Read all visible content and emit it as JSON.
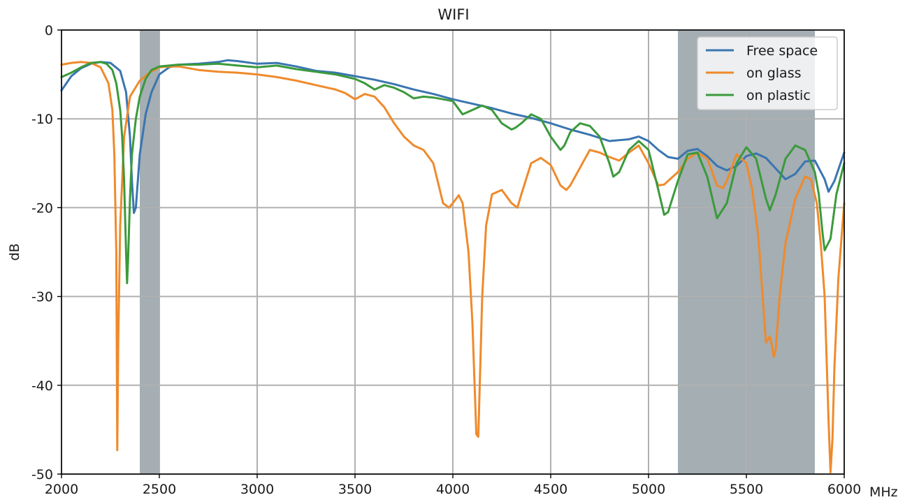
{
  "chart_data": {
    "type": "line",
    "title": "WIFI",
    "xlabel": "",
    "ylabel": "dB",
    "x_unit_label": "MHz",
    "xlim": [
      2000,
      6000
    ],
    "ylim": [
      -50,
      0
    ],
    "xticks": [
      2000,
      2500,
      3000,
      3500,
      4000,
      4500,
      5000,
      5500,
      6000
    ],
    "yticks": [
      0,
      -10,
      -20,
      -30,
      -40,
      -50
    ],
    "grid": true,
    "legend_position": "top-right",
    "shaded_bands": [
      {
        "from": 2400,
        "to": 2500,
        "color": "#a4aeb3"
      },
      {
        "from": 5150,
        "to": 5850,
        "color": "#a4aeb3"
      }
    ],
    "series": [
      {
        "name": "Free space",
        "color": "#3a75b0",
        "x": [
          2000,
          2050,
          2100,
          2150,
          2200,
          2250,
          2300,
          2330,
          2350,
          2360,
          2370,
          2380,
          2400,
          2430,
          2460,
          2500,
          2550,
          2600,
          2700,
          2800,
          2850,
          2900,
          3000,
          3100,
          3200,
          3300,
          3400,
          3500,
          3600,
          3700,
          3800,
          3900,
          4000,
          4100,
          4200,
          4300,
          4400,
          4500,
          4600,
          4700,
          4800,
          4900,
          4950,
          5000,
          5050,
          5100,
          5150,
          5200,
          5250,
          5300,
          5350,
          5400,
          5450,
          5500,
          5550,
          5600,
          5650,
          5700,
          5750,
          5800,
          5850,
          5900,
          5920,
          5950,
          6000
        ],
        "y": [
          -6.8,
          -5.2,
          -4.3,
          -3.8,
          -3.6,
          -3.7,
          -4.6,
          -7,
          -12,
          -17,
          -20.6,
          -20,
          -14,
          -9.5,
          -7,
          -5,
          -4.2,
          -3.9,
          -3.8,
          -3.6,
          -3.4,
          -3.5,
          -3.8,
          -3.7,
          -4.1,
          -4.6,
          -4.8,
          -5.2,
          -5.6,
          -6.1,
          -6.7,
          -7.2,
          -7.8,
          -8.3,
          -8.8,
          -9.4,
          -9.9,
          -10.5,
          -11.2,
          -11.8,
          -12.5,
          -12.3,
          -12.0,
          -12.5,
          -13.5,
          -14.3,
          -14.5,
          -13.6,
          -13.4,
          -14.2,
          -15.3,
          -15.8,
          -15.3,
          -14.2,
          -13.9,
          -14.4,
          -15.6,
          -16.8,
          -16.2,
          -14.8,
          -14.7,
          -16.8,
          -18.2,
          -17.0,
          -13.8
        ]
      },
      {
        "name": "on glass",
        "color": "#ef8a2c",
        "x": [
          2000,
          2050,
          2100,
          2150,
          2200,
          2240,
          2260,
          2270,
          2280,
          2285,
          2290,
          2300,
          2320,
          2350,
          2400,
          2450,
          2500,
          2550,
          2600,
          2700,
          2800,
          2900,
          3000,
          3100,
          3200,
          3300,
          3400,
          3450,
          3500,
          3550,
          3600,
          3650,
          3700,
          3750,
          3800,
          3850,
          3900,
          3950,
          3980,
          4000,
          4030,
          4050,
          4080,
          4100,
          4120,
          4130,
          4140,
          4150,
          4170,
          4200,
          4250,
          4300,
          4330,
          4350,
          4400,
          4450,
          4500,
          4550,
          4580,
          4600,
          4650,
          4700,
          4750,
          4800,
          4850,
          4900,
          4950,
          5000,
          5050,
          5080,
          5100,
          5150,
          5200,
          5250,
          5300,
          5350,
          5380,
          5400,
          5450,
          5500,
          5530,
          5560,
          5580,
          5600,
          5620,
          5630,
          5640,
          5650,
          5670,
          5700,
          5750,
          5800,
          5830,
          5860,
          5880,
          5900,
          5910,
          5920,
          5930,
          5940,
          5950,
          5970,
          6000
        ],
        "y": [
          -3.9,
          -3.7,
          -3.6,
          -3.7,
          -4.2,
          -6,
          -9,
          -14,
          -25,
          -47.3,
          -35,
          -22,
          -12,
          -7.5,
          -5.7,
          -4.8,
          -4.2,
          -4.1,
          -4.1,
          -4.5,
          -4.7,
          -4.8,
          -5.0,
          -5.3,
          -5.7,
          -6.2,
          -6.7,
          -7.1,
          -7.8,
          -7.2,
          -7.5,
          -8.7,
          -10.5,
          -12.0,
          -13.0,
          -13.5,
          -15.0,
          -19.5,
          -20.0,
          -19.5,
          -18.6,
          -19.5,
          -25,
          -33,
          -45.5,
          -45.8,
          -38,
          -30,
          -22,
          -18.5,
          -18.0,
          -19.5,
          -20.0,
          -18.5,
          -15.0,
          -14.4,
          -15.2,
          -17.5,
          -18.0,
          -17.5,
          -15.5,
          -13.5,
          -13.8,
          -14.3,
          -14.7,
          -13.8,
          -13.0,
          -15.0,
          -17.5,
          -17.4,
          -17.0,
          -16.0,
          -14.5,
          -13.8,
          -14.5,
          -17.5,
          -17.8,
          -17.0,
          -14.0,
          -15.0,
          -18.0,
          -23.0,
          -29,
          -35.2,
          -34.5,
          -35.5,
          -36.8,
          -36.0,
          -30,
          -24,
          -19,
          -16.5,
          -16.8,
          -19.5,
          -24,
          -30,
          -37,
          -44,
          -49.8,
          -46,
          -38,
          -28,
          -19.5
        ]
      },
      {
        "name": "on plastic",
        "color": "#3b9a3b",
        "x": [
          2000,
          2050,
          2100,
          2150,
          2200,
          2230,
          2260,
          2280,
          2300,
          2310,
          2320,
          2330,
          2335,
          2340,
          2350,
          2360,
          2380,
          2400,
          2430,
          2460,
          2500,
          2550,
          2600,
          2700,
          2800,
          2900,
          3000,
          3100,
          3200,
          3300,
          3400,
          3500,
          3550,
          3600,
          3650,
          3700,
          3750,
          3800,
          3850,
          3900,
          3950,
          4000,
          4050,
          4100,
          4150,
          4200,
          4250,
          4300,
          4320,
          4350,
          4400,
          4450,
          4500,
          4550,
          4570,
          4600,
          4650,
          4700,
          4750,
          4800,
          4820,
          4850,
          4900,
          4950,
          5000,
          5050,
          5080,
          5100,
          5150,
          5200,
          5250,
          5300,
          5350,
          5400,
          5450,
          5500,
          5550,
          5600,
          5620,
          5650,
          5700,
          5750,
          5800,
          5850,
          5870,
          5890,
          5900,
          5930,
          5960,
          6000
        ],
        "y": [
          -5.3,
          -4.8,
          -4.2,
          -3.7,
          -3.6,
          -3.8,
          -4.5,
          -6,
          -9,
          -12,
          -17,
          -25,
          -28.5,
          -26,
          -19,
          -14,
          -10,
          -7.5,
          -5.5,
          -4.5,
          -4.1,
          -4.0,
          -3.9,
          -3.9,
          -3.8,
          -4.0,
          -4.2,
          -4.0,
          -4.4,
          -4.7,
          -5.0,
          -5.5,
          -6.0,
          -6.7,
          -6.2,
          -6.5,
          -7.0,
          -7.7,
          -7.5,
          -7.6,
          -7.8,
          -8.0,
          -9.5,
          -9.0,
          -8.5,
          -9.0,
          -10.5,
          -11.2,
          -11.0,
          -10.5,
          -9.5,
          -10.0,
          -12.0,
          -13.5,
          -13.0,
          -11.5,
          -10.5,
          -10.8,
          -12.0,
          -15.0,
          -16.5,
          -16.0,
          -13.5,
          -12.5,
          -13.5,
          -18.0,
          -20.8,
          -20.5,
          -17.0,
          -14.0,
          -13.8,
          -16.5,
          -21.2,
          -19.5,
          -15.0,
          -13.2,
          -14.5,
          -19.0,
          -20.3,
          -18.5,
          -14.5,
          -13.0,
          -13.5,
          -16.0,
          -18.5,
          -23,
          -24.8,
          -23.5,
          -18.5,
          -15.0
        ]
      }
    ]
  }
}
